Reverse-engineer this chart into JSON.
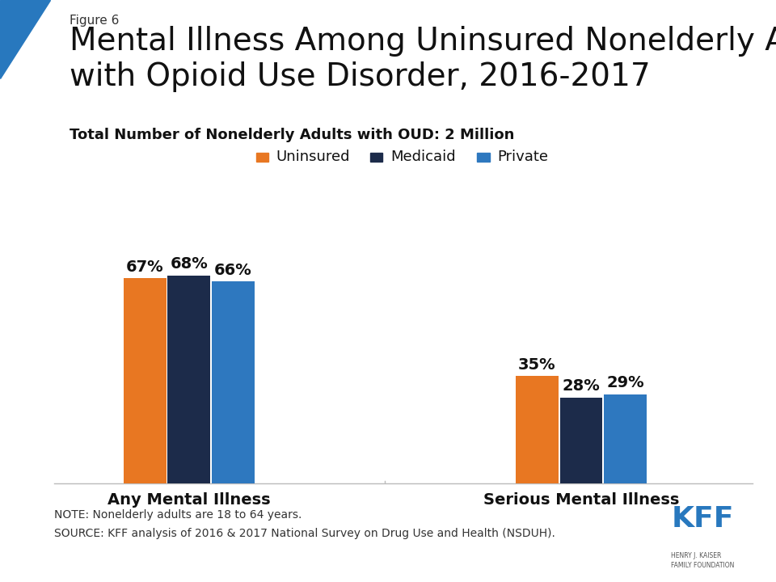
{
  "figure_label": "Figure 6",
  "title_line1": "Mental Illness Among Uninsured Nonelderly Adults",
  "title_line2": "with Opioid Use Disorder, 2016-2017",
  "subtitle": "Total Number of Nonelderly Adults with OUD: 2 Million",
  "categories": [
    "Any Mental Illness",
    "Serious Mental Illness"
  ],
  "series": [
    "Uninsured",
    "Medicaid",
    "Private"
  ],
  "values": [
    [
      67,
      68,
      66
    ],
    [
      35,
      28,
      29
    ]
  ],
  "labels": [
    [
      "67%",
      "68%",
      "66%"
    ],
    [
      "35%",
      "28%",
      "29%"
    ]
  ],
  "colors": [
    "#E87722",
    "#1C2B4A",
    "#2E78BF"
  ],
  "bar_width": 0.18,
  "group_centers": [
    1.0,
    2.6
  ],
  "ylim": [
    0,
    80
  ],
  "xlim": [
    0.45,
    3.3
  ],
  "note_line1": "NOTE: Nonelderly adults are 18 to 64 years.",
  "note_line2": "SOURCE: KFF analysis of 2016 & 2017 National Survey on Drug Use and Health (NSDUH).",
  "background_color": "#FFFFFF",
  "triangle_color": "#2878BE",
  "title_fontsize": 28,
  "figure_label_fontsize": 11,
  "subtitle_fontsize": 13,
  "legend_fontsize": 13,
  "bar_label_fontsize": 14,
  "cat_label_fontsize": 14,
  "note_fontsize": 10,
  "kff_color": "#2878BE"
}
